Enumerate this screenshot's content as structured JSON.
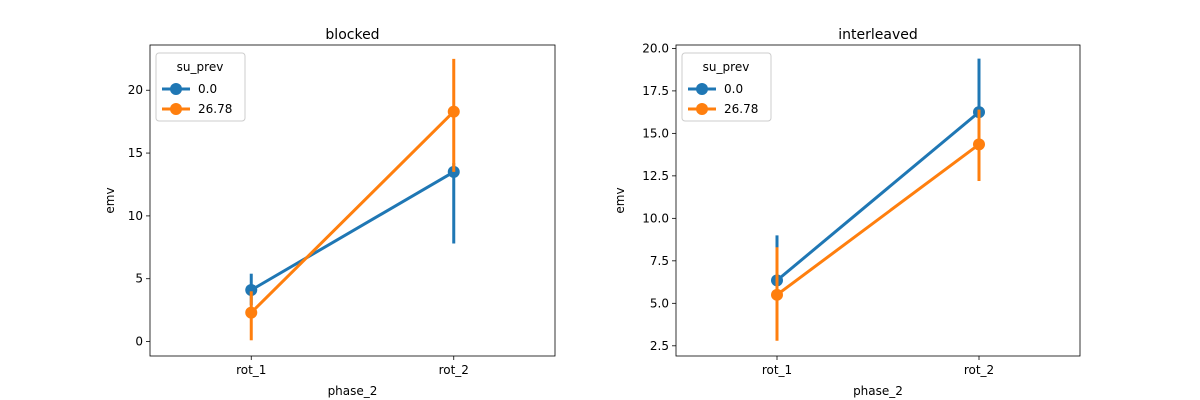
{
  "chart_data": [
    {
      "type": "point",
      "title": "blocked",
      "xlabel": "phase_2",
      "ylabel": "emv",
      "categories": [
        "rot_1",
        "rot_2"
      ],
      "ylim": [
        -1.15,
        23.6
      ],
      "yticks": [
        0,
        5,
        10,
        15,
        20
      ],
      "ytick_labels": [
        "0",
        "5",
        "10",
        "15",
        "20"
      ],
      "legend": {
        "title": "su_prev",
        "placement": "top-left"
      },
      "series": [
        {
          "name": "0.0",
          "color": "#1f77b4",
          "values": [
            4.1,
            13.5
          ],
          "ci_low": [
            2.9,
            7.8
          ],
          "ci_high": [
            5.4,
            14.2
          ]
        },
        {
          "name": "26.78",
          "color": "#ff7f0e",
          "values": [
            2.3,
            18.3
          ],
          "ci_low": [
            0.1,
            13.5
          ],
          "ci_high": [
            4.0,
            22.5
          ]
        }
      ]
    },
    {
      "type": "point",
      "title": "interleaved",
      "xlabel": "phase_2",
      "ylabel": "emv",
      "categories": [
        "rot_1",
        "rot_2"
      ],
      "ylim": [
        1.9,
        20.2
      ],
      "yticks": [
        2.5,
        5.0,
        7.5,
        10.0,
        12.5,
        15.0,
        17.5,
        20.0
      ],
      "ytick_labels": [
        "2.5",
        "5.0",
        "7.5",
        "10.0",
        "12.5",
        "15.0",
        "17.5",
        "20.0"
      ],
      "legend": {
        "title": "su_prev",
        "placement": "top-left"
      },
      "series": [
        {
          "name": "0.0",
          "color": "#1f77b4",
          "values": [
            6.35,
            16.25
          ],
          "ci_low": [
            4.2,
            13.4
          ],
          "ci_high": [
            9.0,
            19.4
          ]
        },
        {
          "name": "26.78",
          "color": "#ff7f0e",
          "values": [
            5.5,
            14.35
          ],
          "ci_low": [
            2.8,
            12.2
          ],
          "ci_high": [
            8.3,
            16.4
          ]
        }
      ]
    }
  ]
}
